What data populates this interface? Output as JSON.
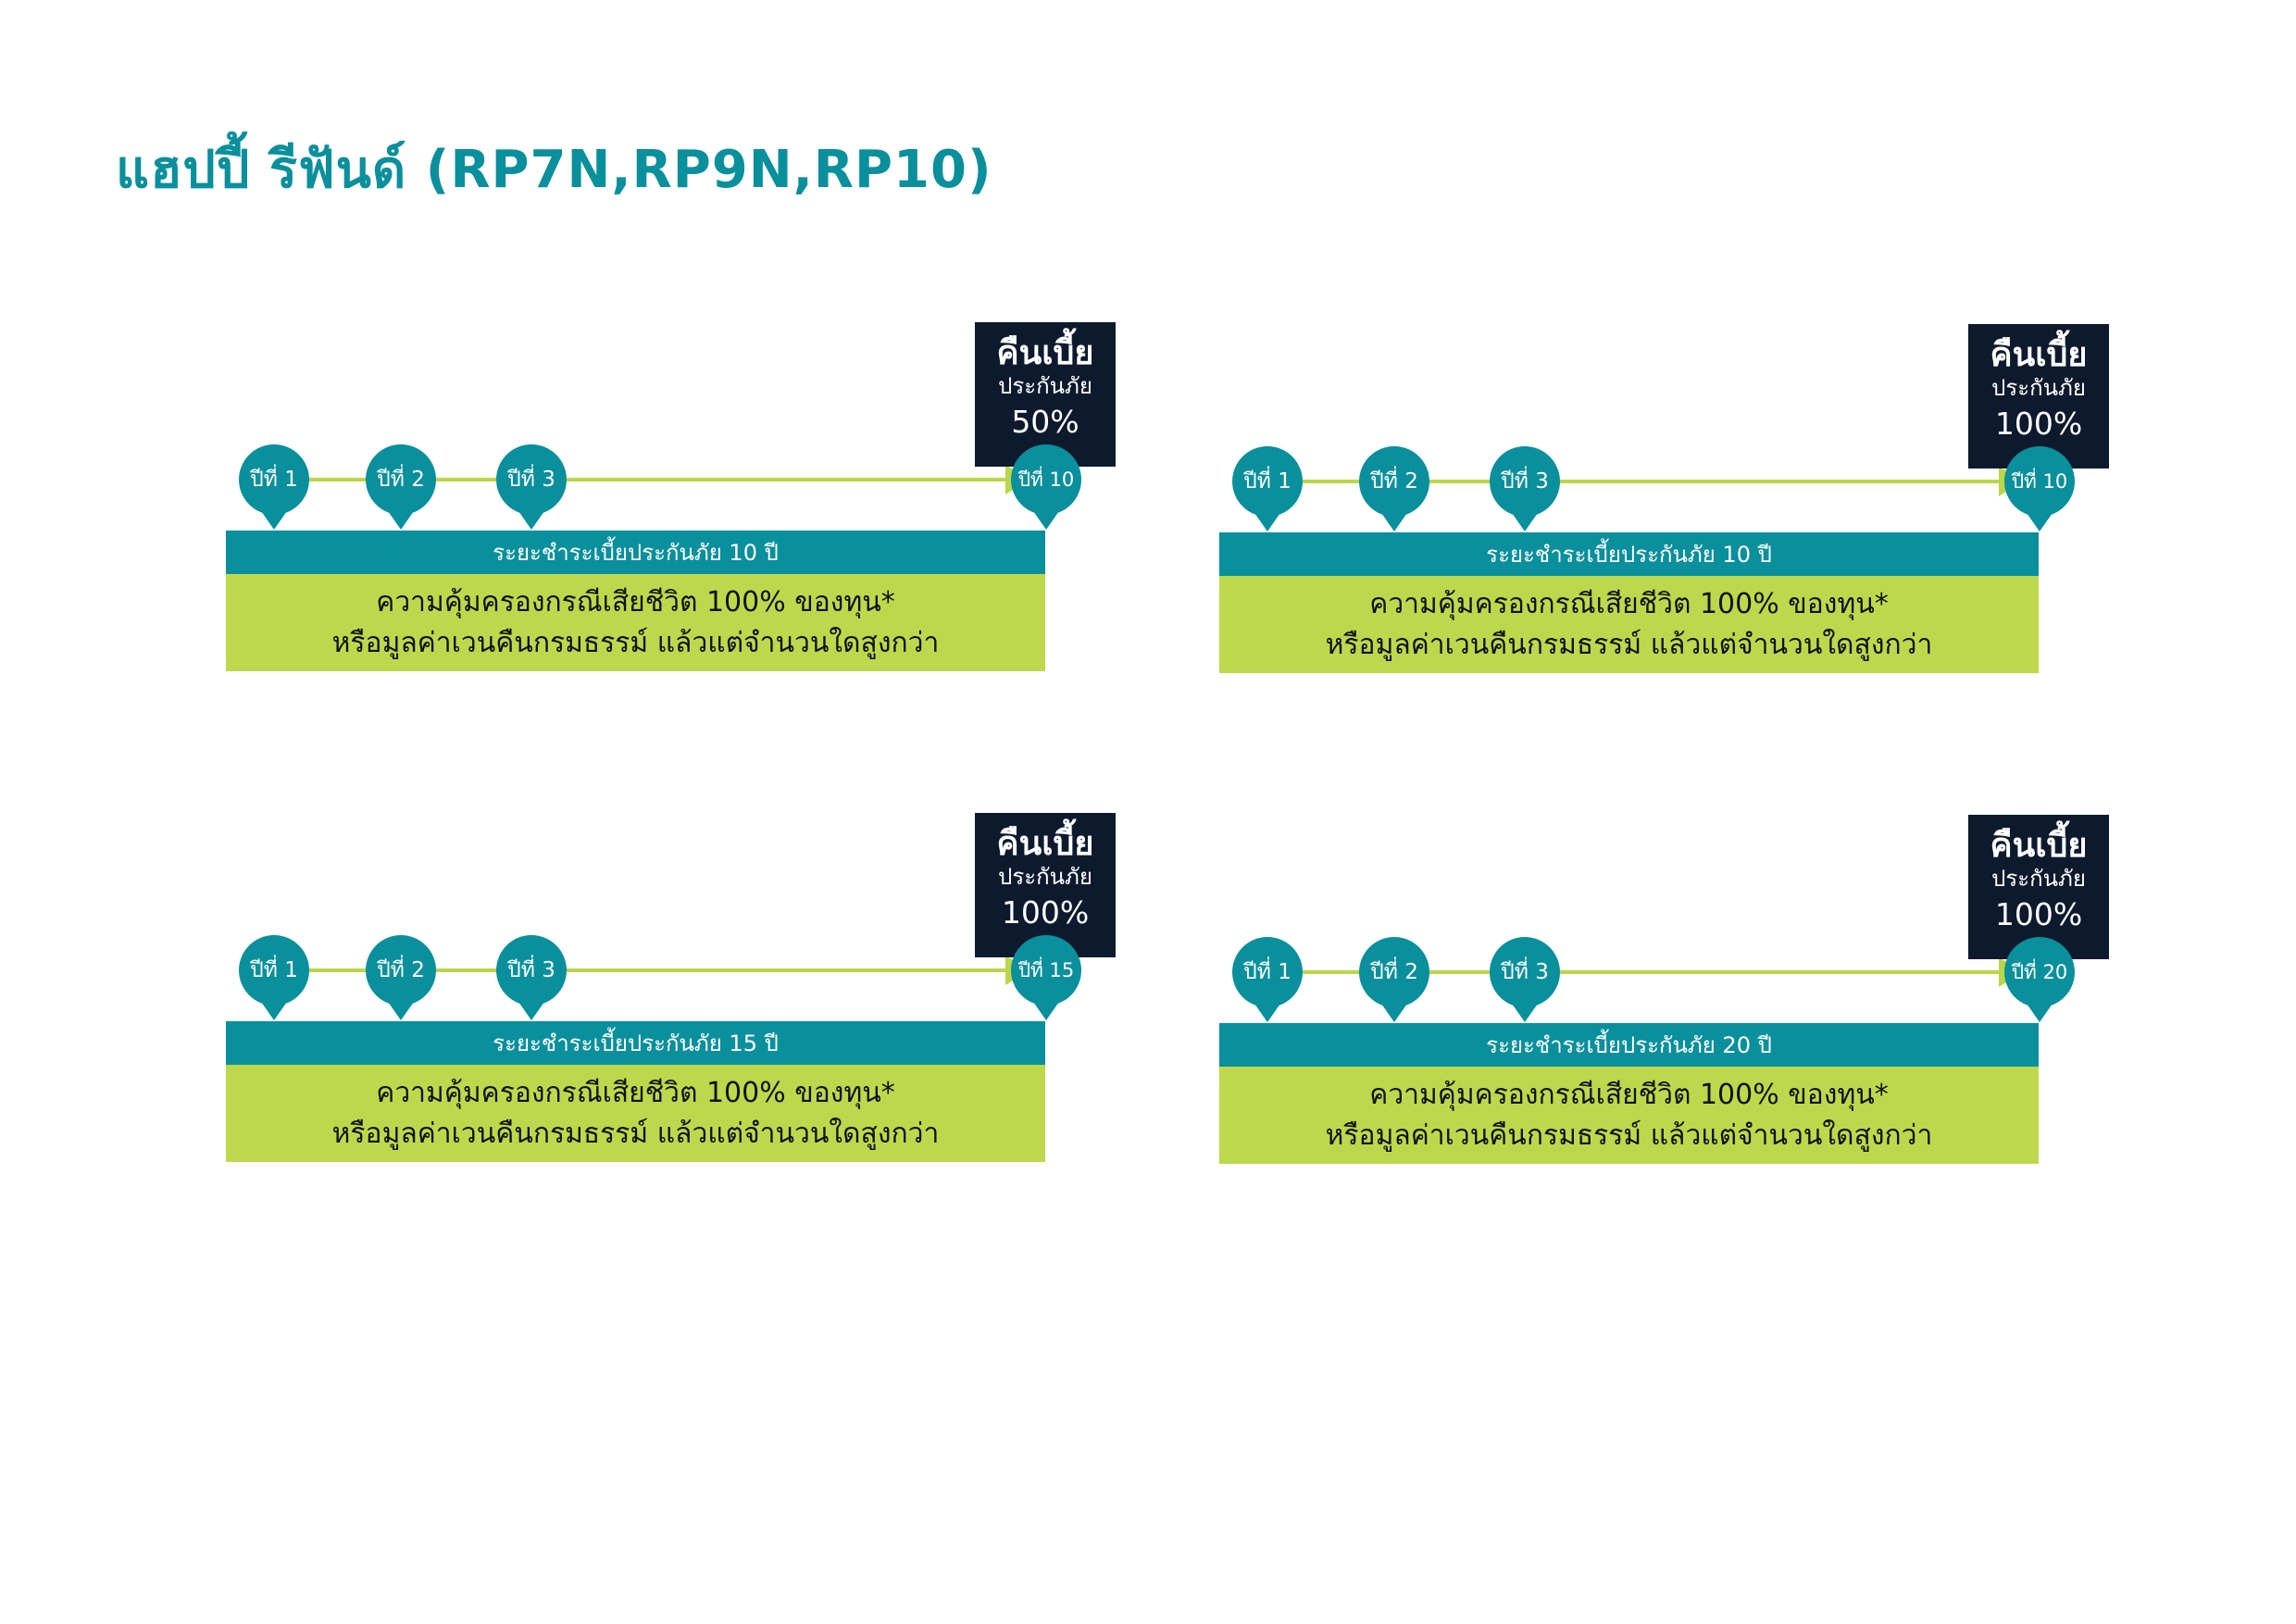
{
  "title": "แฮปปี้ รีฟันด์ (RP7N,RP9N,RP10)",
  "colors": {
    "title": "#0a8f9c",
    "marker": "#0a8f9c",
    "line": "#b9d749",
    "refund_box": "#0d1a2e",
    "period_bar": "#0a8f9c",
    "coverage_box": "#bed84d"
  },
  "panels": [
    {
      "markers": [
        "ปีที่ 1",
        "ปีที่ 2",
        "ปีที่ 3",
        "ปีที่ 10"
      ],
      "refund": {
        "main": "คืนเบี้ย",
        "sub": "ประกันภัย",
        "pct": "50%"
      },
      "period": "ระยะชำระเบี้ยประกันภัย 10 ปี",
      "coverage": {
        "line1": "ความคุ้มครองกรณีเสียชีวิต 100% ของทุน*",
        "line2": "หรือมูลค่าเวนคืนกรมธรรม์ แล้วแต่จำนวนใดสูงกว่า"
      }
    },
    {
      "markers": [
        "ปีที่ 1",
        "ปีที่ 2",
        "ปีที่ 3",
        "ปีที่ 10"
      ],
      "refund": {
        "main": "คืนเบี้ย",
        "sub": "ประกันภัย",
        "pct": "100%"
      },
      "period": "ระยะชำระเบี้ยประกันภัย 10 ปี",
      "coverage": {
        "line1": "ความคุ้มครองกรณีเสียชีวิต 100% ของทุน*",
        "line2": "หรือมูลค่าเวนคืนกรมธรรม์ แล้วแต่จำนวนใดสูงกว่า"
      }
    },
    {
      "markers": [
        "ปีที่ 1",
        "ปีที่ 2",
        "ปีที่ 3",
        "ปีที่ 15"
      ],
      "refund": {
        "main": "คืนเบี้ย",
        "sub": "ประกันภัย",
        "pct": "100%"
      },
      "period": "ระยะชำระเบี้ยประกันภัย 15 ปี",
      "coverage": {
        "line1": "ความคุ้มครองกรณีเสียชีวิต 100% ของทุน*",
        "line2": "หรือมูลค่าเวนคืนกรมธรรม์ แล้วแต่จำนวนใดสูงกว่า"
      }
    },
    {
      "markers": [
        "ปีที่ 1",
        "ปีที่ 2",
        "ปีที่ 3",
        "ปีที่ 20"
      ],
      "refund": {
        "main": "คืนเบี้ย",
        "sub": "ประกันภัย",
        "pct": "100%"
      },
      "period": "ระยะชำระเบี้ยประกันภัย 20 ปี",
      "coverage": {
        "line1": "ความคุ้มครองกรณีเสียชีวิต 100% ของทุน*",
        "line2": "หรือมูลค่าเวนคืนกรมธรรม์ แล้วแต่จำนวนใดสูงกว่า"
      }
    }
  ]
}
